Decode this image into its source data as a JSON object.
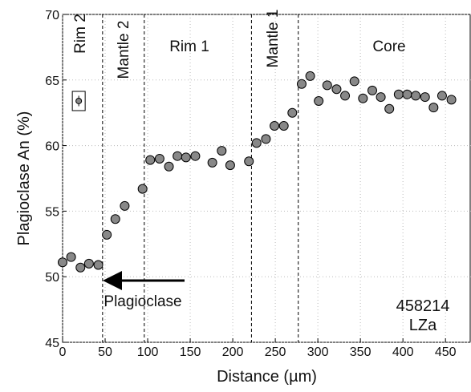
{
  "chart_data": {
    "type": "scatter",
    "x_label": "Distance (µm)",
    "y_label": "Plagioclase An (%)",
    "xlim": [
      0,
      480
    ],
    "ylim": [
      45,
      70
    ],
    "xticks": [
      0,
      50,
      100,
      150,
      200,
      250,
      300,
      350,
      400,
      450
    ],
    "yticks": [
      45,
      50,
      55,
      60,
      65,
      70
    ],
    "grid": true,
    "series": [
      {
        "color": "#888888",
        "x": [
          0,
          10,
          21,
          31,
          42,
          52,
          62,
          73,
          94,
          103,
          114,
          125,
          135,
          145,
          156,
          176,
          187,
          197,
          219,
          228,
          239,
          249,
          260,
          270,
          281,
          291,
          301,
          311,
          322,
          332,
          343,
          353,
          364,
          374,
          384,
          395,
          405,
          415,
          426,
          436,
          446,
          457
        ],
        "values": [
          51.1,
          51.5,
          50.7,
          51.0,
          50.9,
          53.2,
          54.4,
          55.4,
          56.7,
          58.9,
          59.0,
          58.4,
          59.2,
          59.1,
          59.2,
          58.7,
          59.6,
          58.5,
          58.8,
          60.2,
          60.5,
          61.5,
          61.5,
          62.5,
          64.7,
          65.3,
          63.4,
          64.6,
          64.3,
          63.8,
          64.9,
          63.6,
          64.2,
          63.7,
          62.8,
          63.9,
          63.9,
          63.8,
          63.7,
          62.9,
          63.8,
          63.5
        ]
      }
    ],
    "error_example": {
      "x": 19,
      "value": 63.4,
      "error": 0.4
    },
    "boundaries": [
      47,
      96,
      222,
      277
    ],
    "regions": [
      "Rim 2",
      "Mantle 2",
      "Rim 1",
      "Mantle 1",
      "Core"
    ],
    "arrow_label": "Plagioclase",
    "sample": [
      "458214",
      "LZa"
    ]
  }
}
